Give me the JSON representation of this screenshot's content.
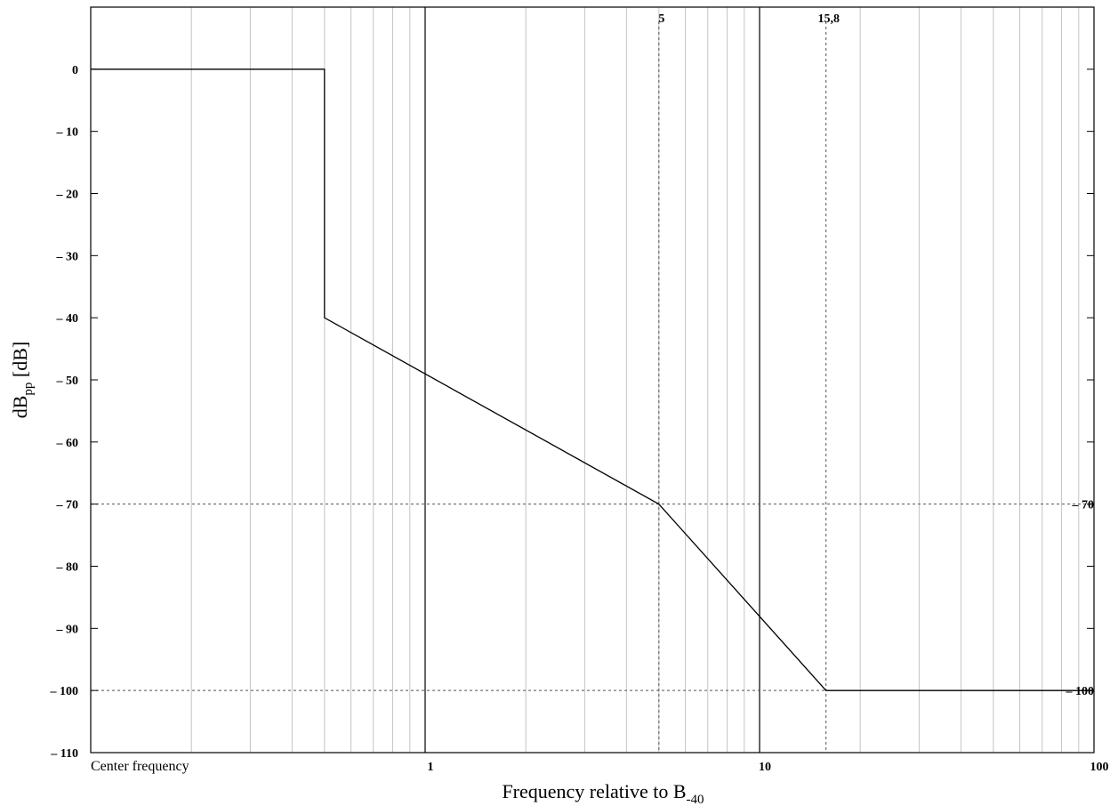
{
  "chart_data": {
    "type": "line",
    "xscale": "log",
    "xlim": [
      0.1,
      100
    ],
    "ylim": [
      -110,
      10
    ],
    "grid": true,
    "xlabel": {
      "main": "Frequency relative to B",
      "sub": "-40"
    },
    "ylabel": {
      "main": "dB",
      "sub": "pp",
      "suffix": " [dB]"
    },
    "left_corner_label": "Center frequency",
    "x_ticks": [
      {
        "value": 1,
        "label": "1"
      },
      {
        "value": 10,
        "label": "10"
      },
      {
        "value": 100,
        "label": "100"
      }
    ],
    "y_ticks": [
      {
        "value": 0,
        "label": "0"
      },
      {
        "value": -10,
        "label": "– 10"
      },
      {
        "value": -20,
        "label": "– 20"
      },
      {
        "value": -30,
        "label": "– 30"
      },
      {
        "value": -40,
        "label": "– 40"
      },
      {
        "value": -50,
        "label": "– 50"
      },
      {
        "value": -60,
        "label": "– 60"
      },
      {
        "value": -70,
        "label": "– 70"
      },
      {
        "value": -80,
        "label": "– 80"
      },
      {
        "value": -90,
        "label": "– 90"
      },
      {
        "value": -100,
        "label": "– 100"
      },
      {
        "value": -110,
        "label": "– 110"
      }
    ],
    "reference_lines": {
      "horizontal": [
        {
          "value": -70,
          "label": "– 70"
        },
        {
          "value": -100,
          "label": "– 100"
        }
      ],
      "vertical": [
        {
          "value": 5,
          "label": "5"
        },
        {
          "value": 15.8,
          "label": "15,8"
        }
      ]
    },
    "series": [
      {
        "x": [
          0.1,
          0.5,
          0.5,
          5,
          15.8,
          100
        ],
        "y": [
          0,
          0,
          -40,
          -70,
          -100,
          -100
        ]
      }
    ],
    "colors": {
      "line": "#000000",
      "grid": "#c4c4c4",
      "reference": "#555555"
    }
  }
}
